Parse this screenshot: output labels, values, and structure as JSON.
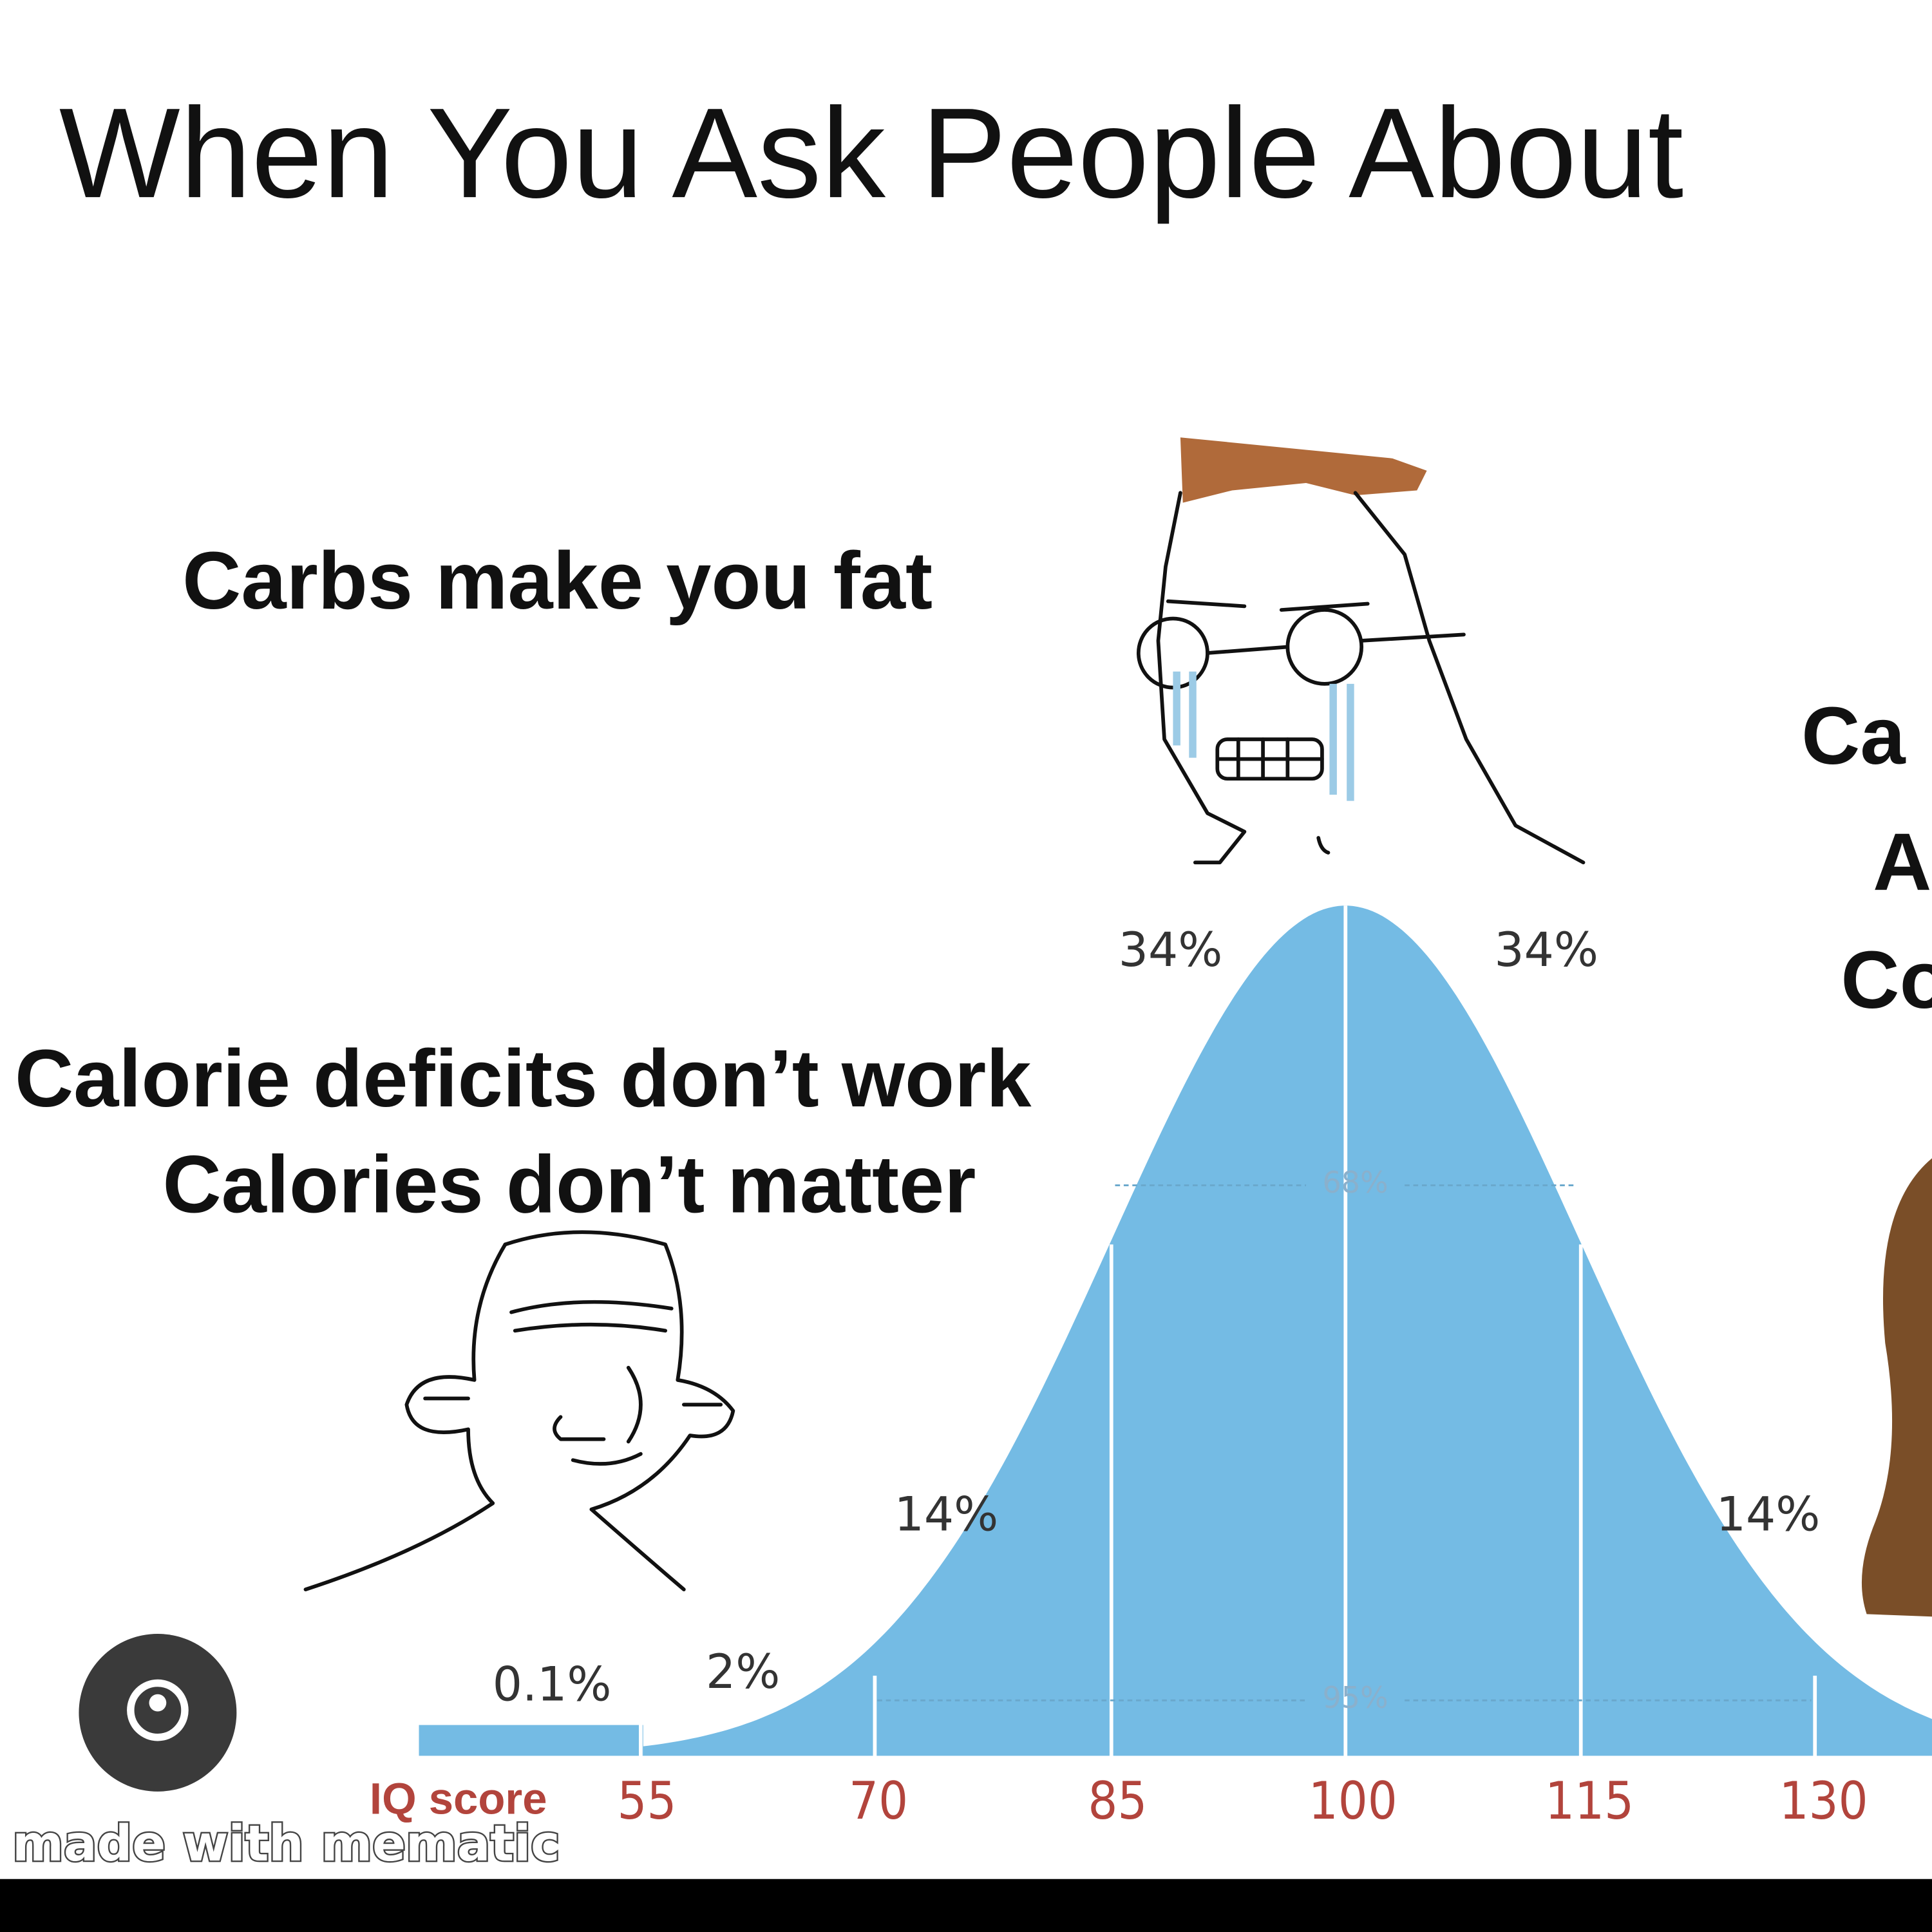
{
  "title": "When You Ask People About",
  "captions": {
    "top": "Carbs make you fat",
    "left": [
      "Calorie deficits don’t work",
      "Calories don’t matter"
    ],
    "right": [
      "Ca",
      "A",
      "Co"
    ]
  },
  "curve": {
    "segment_labels": [
      "0.1%",
      "2%",
      "14%",
      "34%",
      "34%",
      "14%"
    ],
    "overlay_labels": [
      "68%",
      "95%"
    ],
    "axis_title": "IQ score",
    "ticks": [
      "55",
      "70",
      "85",
      "100",
      "115",
      "130"
    ]
  },
  "watermark": "made with mematic"
}
